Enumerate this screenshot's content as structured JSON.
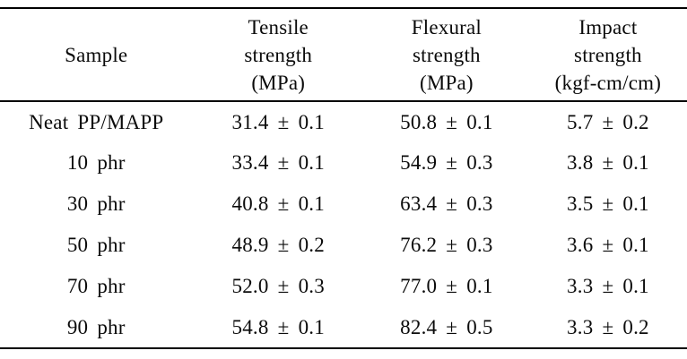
{
  "page": {
    "background_color": "#ffffff",
    "rule_color": "#000000",
    "text_color": "#0b0b0b"
  },
  "table": {
    "description": "Mechanical properties table",
    "columns": [
      {
        "id": "sample",
        "label": "Sample"
      },
      {
        "id": "tensile",
        "label": "Tensile\nstrength\n(MPa)"
      },
      {
        "id": "flexural",
        "label": "Flexural\nstrength\n(MPa)"
      },
      {
        "id": "impact",
        "label": "Impact\nstrength\n(kgf-cm/cm)"
      }
    ],
    "rows": [
      {
        "sample": "Neat PP/MAPP",
        "tensile": "31.4 ± 0.1",
        "flexural": "50.8 ± 0.1",
        "impact": "5.7 ± 0.2"
      },
      {
        "sample": "10 phr",
        "tensile": "33.4 ± 0.1",
        "flexural": "54.9 ± 0.3",
        "impact": "3.8 ± 0.1"
      },
      {
        "sample": "30 phr",
        "tensile": "40.8 ± 0.1",
        "flexural": "63.4 ± 0.3",
        "impact": "3.5 ± 0.1"
      },
      {
        "sample": "50 phr",
        "tensile": "48.9 ± 0.2",
        "flexural": "76.2 ± 0.3",
        "impact": "3.6 ± 0.1"
      },
      {
        "sample": "70 phr",
        "tensile": "52.0 ± 0.3",
        "flexural": "77.0 ± 0.1",
        "impact": "3.3 ± 0.1"
      },
      {
        "sample": "90 phr",
        "tensile": "54.8 ± 0.1",
        "flexural": "82.4 ± 0.5",
        "impact": "3.3 ± 0.2"
      }
    ]
  },
  "chart_data": {
    "type": "table",
    "columns": [
      "Sample",
      "Tensile strength (MPa)",
      "Flexural strength (MPa)",
      "Impact strength (kgf-cm/cm)"
    ],
    "rows": [
      [
        "Neat PP/MAPP",
        "31.4 ± 0.1",
        "50.8 ± 0.1",
        "5.7 ± 0.2"
      ],
      [
        "10 phr",
        "33.4 ± 0.1",
        "54.9 ± 0.3",
        "3.8 ± 0.1"
      ],
      [
        "30 phr",
        "40.8 ± 0.1",
        "63.4 ± 0.3",
        "3.5 ± 0.1"
      ],
      [
        "50 phr",
        "48.9 ± 0.2",
        "76.2 ± 0.3",
        "3.6 ± 0.1"
      ],
      [
        "70 phr",
        "52.0 ± 0.3",
        "77.0 ± 0.1",
        "3.3 ± 0.1"
      ],
      [
        "90 phr",
        "54.8 ± 0.1",
        "82.4 ± 0.5",
        "3.3 ± 0.2"
      ]
    ]
  }
}
